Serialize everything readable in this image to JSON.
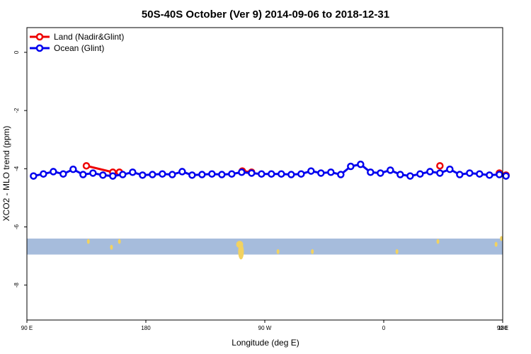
{
  "chart_data": {
    "type": "line",
    "title": "50S-40S October (Ver 9)   2014-09-06 to 2018-12-31",
    "xlabel": "Longitude (deg E)",
    "ylabel": "XCO2 - MLO trend (ppm)",
    "xlim": [
      90,
      450
    ],
    "ylim": [
      -9.2,
      0.85
    ],
    "x_ticks": [
      {
        "value": 90,
        "label": "90 E"
      },
      {
        "value": 180,
        "label": "180"
      },
      {
        "value": 270,
        "label": "90 W"
      },
      {
        "value": 360,
        "label": "0"
      },
      {
        "value": 450,
        "label": "90 E"
      },
      {
        "value": 540,
        "label": "180"
      }
    ],
    "y_ticks": [
      {
        "value": 0,
        "label": "0"
      },
      {
        "value": -2,
        "label": "-2"
      },
      {
        "value": -4,
        "label": "-4"
      },
      {
        "value": -6,
        "label": "-6"
      },
      {
        "value": -8,
        "label": "-8"
      }
    ],
    "grid": false,
    "legend_position": "top-left",
    "series": [
      {
        "name": "Land (Nadir&Glint)",
        "color": "#ee0000",
        "segments": [
          [
            [
              135,
              -3.9
            ],
            [
              155,
              -4.12
            ],
            [
              160,
              -4.12
            ]
          ],
          [
            [
              253,
              -4.08
            ],
            [
              260,
              -4.12
            ]
          ],
          [
            [
              402.5,
              -3.9
            ]
          ],
          [
            [
              447.5,
              -4.15
            ],
            [
              452.5,
              -4.22
            ]
          ]
        ]
      },
      {
        "name": "Ocean (Glint)",
        "color": "#0000ee",
        "x": [
          95,
          102.5,
          110,
          117.5,
          125,
          132.5,
          140,
          147.5,
          155,
          162.5,
          170,
          177.5,
          185,
          192.5,
          200,
          207.5,
          215,
          222.5,
          230,
          237.5,
          245,
          252.5,
          260,
          267.5,
          275,
          282.5,
          290,
          297.5,
          305,
          312.5,
          320,
          327.5,
          335,
          342.5,
          350,
          357.5,
          365,
          372.5,
          380,
          387.5,
          395,
          402.5,
          410,
          417.5,
          425,
          432.5,
          440,
          447.5,
          452.5
        ],
        "values": [
          -4.25,
          -4.18,
          -4.1,
          -4.18,
          -4.02,
          -4.2,
          -4.15,
          -4.22,
          -4.25,
          -4.2,
          -4.12,
          -4.22,
          -4.2,
          -4.18,
          -4.2,
          -4.1,
          -4.22,
          -4.2,
          -4.18,
          -4.2,
          -4.18,
          -4.12,
          -4.15,
          -4.18,
          -4.18,
          -4.18,
          -4.2,
          -4.18,
          -4.08,
          -4.15,
          -4.12,
          -4.2,
          -3.92,
          -3.85,
          -4.12,
          -4.15,
          -4.05,
          -4.2,
          -4.25,
          -4.18,
          -4.1,
          -4.15,
          -4.02,
          -4.2,
          -4.15,
          -4.18,
          -4.22,
          -4.2,
          -4.25
        ]
      }
    ],
    "latitude_band": {
      "ocean_color": "#a6bcdc",
      "land_color": "#f2d260",
      "land_blobs": [
        {
          "lon": 136.5,
          "y": -6.5
        },
        {
          "lon": 154,
          "y": -6.7
        },
        {
          "lon": 160,
          "y": -6.5
        },
        {
          "lon": 251,
          "y": -6.6
        },
        {
          "lon": 252,
          "y": -6.85
        },
        {
          "lon": 280,
          "y": -6.85
        },
        {
          "lon": 306,
          "y": -6.85
        },
        {
          "lon": 370,
          "y": -6.85
        },
        {
          "lon": 401,
          "y": -6.5
        },
        {
          "lon": 445,
          "y": -6.6
        },
        {
          "lon": 449,
          "y": -6.4
        }
      ]
    }
  }
}
